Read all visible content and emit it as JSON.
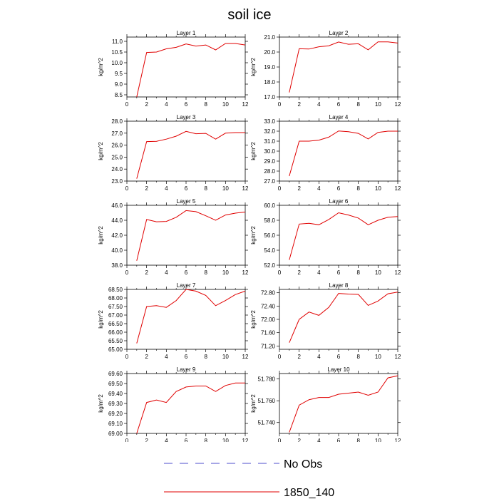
{
  "page": {
    "title": "soil ice"
  },
  "legend": {
    "entries": [
      {
        "label": "No Obs",
        "color": "#4d4dcc",
        "dashed": true
      },
      {
        "label": "1850_140",
        "color": "#e00000",
        "dashed": false
      }
    ]
  },
  "colors": {
    "series": "#e00000",
    "axis": "#000000"
  },
  "chart_data": [
    {
      "type": "line",
      "title": "Layer 1",
      "ylabel": "kg/m^2",
      "xlim": [
        0,
        12
      ],
      "ylim": [
        8.4,
        11.2
      ],
      "xticks": [
        0,
        2,
        4,
        6,
        8,
        10,
        12
      ],
      "yticks": [
        8.5,
        9.0,
        9.5,
        10.0,
        10.5,
        11.0
      ],
      "ydec": 1,
      "series": [
        {
          "x": [
            1,
            2,
            3,
            4,
            5,
            6,
            7,
            8,
            9,
            10,
            11,
            12
          ],
          "y": [
            8.4,
            10.48,
            10.5,
            10.65,
            10.72,
            10.88,
            10.78,
            10.83,
            10.6,
            10.9,
            10.9,
            10.83
          ]
        }
      ]
    },
    {
      "type": "line",
      "title": "Layer 2",
      "ylabel": "kg/m^2",
      "xlim": [
        0,
        12
      ],
      "ylim": [
        17.0,
        21.0
      ],
      "xticks": [
        0,
        2,
        4,
        6,
        8,
        10,
        12
      ],
      "yticks": [
        17.0,
        18.0,
        19.0,
        20.0,
        21.0
      ],
      "ydec": 1,
      "series": [
        {
          "x": [
            1,
            2,
            3,
            4,
            5,
            6,
            7,
            8,
            9,
            10,
            11,
            12
          ],
          "y": [
            17.3,
            20.22,
            20.2,
            20.35,
            20.42,
            20.67,
            20.52,
            20.55,
            20.15,
            20.68,
            20.68,
            20.6
          ]
        }
      ]
    },
    {
      "type": "line",
      "title": "Layer 3",
      "ylabel": "kg/m^2",
      "xlim": [
        0,
        12
      ],
      "ylim": [
        23.0,
        28.0
      ],
      "xticks": [
        0,
        2,
        4,
        6,
        8,
        10,
        12
      ],
      "yticks": [
        23.0,
        24.0,
        25.0,
        26.0,
        27.0,
        28.0
      ],
      "ydec": 1,
      "series": [
        {
          "x": [
            1,
            2,
            3,
            4,
            5,
            6,
            7,
            8,
            9,
            10,
            11,
            12
          ],
          "y": [
            23.2,
            26.3,
            26.32,
            26.5,
            26.75,
            27.15,
            26.95,
            26.98,
            26.5,
            27.0,
            27.05,
            27.05
          ]
        }
      ]
    },
    {
      "type": "line",
      "title": "Layer 4",
      "ylabel": "kg/m^2",
      "xlim": [
        0,
        12
      ],
      "ylim": [
        27.0,
        33.0
      ],
      "xticks": [
        0,
        2,
        4,
        6,
        8,
        10,
        12
      ],
      "yticks": [
        27.0,
        28.0,
        29.0,
        30.0,
        31.0,
        32.0,
        33.0
      ],
      "ydec": 1,
      "series": [
        {
          "x": [
            1,
            2,
            3,
            4,
            5,
            6,
            7,
            8,
            9,
            10,
            11,
            12
          ],
          "y": [
            27.5,
            31.0,
            31.0,
            31.1,
            31.4,
            32.02,
            31.95,
            31.78,
            31.22,
            31.88,
            32.0,
            32.0
          ]
        }
      ]
    },
    {
      "type": "line",
      "title": "Layer 5",
      "ylabel": "kg/m^2",
      "xlim": [
        0,
        12
      ],
      "ylim": [
        38.0,
        46.0
      ],
      "xticks": [
        0,
        2,
        4,
        6,
        8,
        10,
        12
      ],
      "yticks": [
        38.0,
        40.0,
        42.0,
        44.0,
        46.0
      ],
      "ydec": 1,
      "series": [
        {
          "x": [
            1,
            2,
            3,
            4,
            5,
            6,
            7,
            8,
            9,
            10,
            11,
            12
          ],
          "y": [
            38.6,
            44.1,
            43.8,
            43.85,
            44.4,
            45.3,
            45.15,
            44.6,
            44.0,
            44.7,
            44.95,
            45.1
          ]
        }
      ]
    },
    {
      "type": "line",
      "title": "Layer 6",
      "ylabel": "kg/m^2",
      "xlim": [
        0,
        12
      ],
      "ylim": [
        52.0,
        60.0
      ],
      "xticks": [
        0,
        2,
        4,
        6,
        8,
        10,
        12
      ],
      "yticks": [
        52.0,
        54.0,
        56.0,
        58.0,
        60.0
      ],
      "ydec": 1,
      "series": [
        {
          "x": [
            1,
            2,
            3,
            4,
            5,
            6,
            7,
            8,
            9,
            10,
            11,
            12
          ],
          "y": [
            52.7,
            57.5,
            57.6,
            57.4,
            58.1,
            59.0,
            58.7,
            58.3,
            57.4,
            58.0,
            58.4,
            58.5
          ]
        }
      ]
    },
    {
      "type": "line",
      "title": "Layer 7",
      "ylabel": "kg/m^2",
      "xlim": [
        0,
        12
      ],
      "ylim": [
        65.0,
        68.5
      ],
      "xticks": [
        0,
        2,
        4,
        6,
        8,
        10,
        12
      ],
      "yticks": [
        65.0,
        65.5,
        66.0,
        66.5,
        67.0,
        67.5,
        68.0,
        68.5
      ],
      "ydec": 2,
      "series": [
        {
          "x": [
            1,
            2,
            3,
            4,
            5,
            6,
            7,
            8,
            9,
            10,
            11,
            12
          ],
          "y": [
            65.35,
            67.5,
            67.55,
            67.45,
            67.85,
            68.5,
            68.4,
            68.15,
            67.55,
            67.85,
            68.2,
            68.4
          ]
        }
      ]
    },
    {
      "type": "line",
      "title": "Layer 8",
      "ylabel": "kg/m^2",
      "xlim": [
        0,
        12
      ],
      "ylim": [
        71.1,
        72.9
      ],
      "xticks": [
        0,
        2,
        4,
        6,
        8,
        10,
        12
      ],
      "yticks": [
        71.2,
        71.6,
        72.0,
        72.4,
        72.8
      ],
      "ydec": 2,
      "series": [
        {
          "x": [
            1,
            2,
            3,
            4,
            5,
            6,
            7,
            8,
            9,
            10,
            11,
            12
          ],
          "y": [
            71.3,
            72.0,
            72.22,
            72.12,
            72.36,
            72.78,
            72.76,
            72.75,
            72.42,
            72.55,
            72.77,
            72.82
          ]
        }
      ]
    },
    {
      "type": "line",
      "title": "Layer 9",
      "ylabel": "kg/m^2",
      "xlim": [
        0,
        12
      ],
      "ylim": [
        69.0,
        69.6
      ],
      "xticks": [
        0,
        2,
        4,
        6,
        8,
        10,
        12
      ],
      "yticks": [
        69.0,
        69.1,
        69.2,
        69.3,
        69.4,
        69.5,
        69.6
      ],
      "ydec": 2,
      "series": [
        {
          "x": [
            1,
            2,
            3,
            4,
            5,
            6,
            7,
            8,
            9,
            10,
            11,
            12
          ],
          "y": [
            69.0,
            69.31,
            69.335,
            69.31,
            69.42,
            69.465,
            69.475,
            69.475,
            69.42,
            69.48,
            69.505,
            69.505
          ]
        }
      ]
    },
    {
      "type": "line",
      "title": "Layer 10",
      "ylabel": "kg/m^2",
      "xlim": [
        0,
        12
      ],
      "ylim": [
        51.73,
        51.785
      ],
      "xticks": [
        0,
        2,
        4,
        6,
        8,
        10,
        12
      ],
      "yticks": [
        51.74,
        51.76,
        51.78
      ],
      "ydec": 3,
      "series": [
        {
          "x": [
            1,
            2,
            3,
            4,
            5,
            6,
            7,
            8,
            9,
            10,
            11,
            12
          ],
          "y": [
            51.731,
            51.756,
            51.761,
            51.763,
            51.763,
            51.766,
            51.767,
            51.768,
            51.765,
            51.768,
            51.781,
            51.783
          ]
        }
      ]
    }
  ]
}
